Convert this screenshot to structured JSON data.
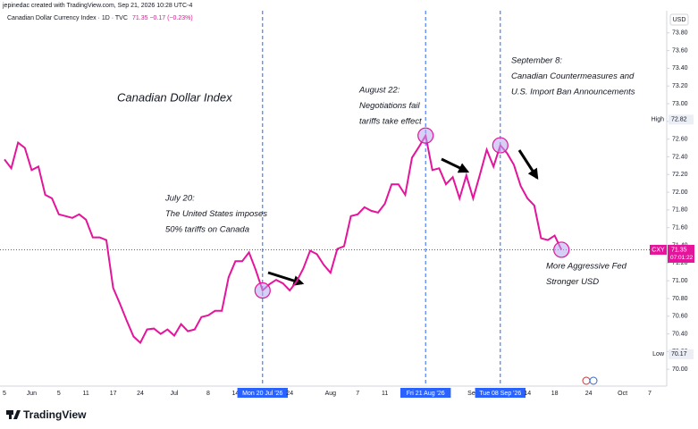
{
  "chart_data": {
    "type": "line",
    "header": "jepinedac created with TradingView.com, Sep 21, 2026 10:28 UTC-4",
    "legend_name": "Canadian Dollar Currency Index · 1D · TVC",
    "legend_quote": "71.35 −0.17 (−0.23%)",
    "title": "Canadian Dollar Index",
    "currency": "USD",
    "brand": "TradingView",
    "color": "#e4149b",
    "categories": [
      "5",
      null,
      null,
      null,
      "Jun",
      null,
      null,
      null,
      "5",
      null,
      null,
      null,
      "11",
      null,
      null,
      null,
      "17",
      null,
      null,
      null,
      "24",
      null,
      null,
      null,
      null,
      "Jul",
      null,
      null,
      null,
      null,
      "8",
      null,
      null,
      null,
      "14",
      null,
      null,
      null,
      "Mon 20 Jul '26",
      null,
      null,
      null,
      "24",
      null,
      null,
      null,
      null,
      null,
      "Aug",
      null,
      null,
      null,
      "7",
      null,
      null,
      null,
      "11",
      null,
      null,
      null,
      null,
      null,
      "Fri 21 Aug '26",
      null,
      null,
      null,
      null,
      null,
      null,
      "Sep",
      null,
      null,
      null,
      "Tue 08 Sep '26",
      null,
      null,
      null,
      "14",
      null,
      null,
      null,
      "18",
      null,
      null,
      null,
      null,
      "24",
      null,
      null,
      null,
      null,
      "Oct",
      null,
      null,
      null,
      "7",
      null,
      null
    ],
    "values": [
      72.37,
      72.27,
      72.56,
      72.5,
      72.25,
      72.29,
      71.97,
      71.93,
      71.75,
      71.73,
      71.71,
      71.75,
      71.69,
      71.49,
      71.49,
      71.46,
      70.92,
      70.74,
      70.55,
      70.37,
      70.3,
      70.45,
      70.46,
      70.4,
      70.45,
      70.38,
      70.51,
      70.43,
      70.45,
      70.59,
      70.61,
      70.66,
      70.66,
      71.04,
      71.22,
      71.22,
      71.32,
      71.12,
      70.89,
      70.96,
      71.01,
      70.97,
      70.89,
      70.99,
      71.14,
      71.34,
      71.3,
      71.18,
      71.09,
      71.36,
      71.39,
      71.73,
      71.75,
      71.83,
      71.79,
      71.77,
      71.87,
      72.09,
      72.09,
      71.97,
      72.39,
      72.51,
      72.64,
      72.25,
      72.27,
      72.09,
      72.17,
      71.93,
      72.19,
      71.93,
      72.2,
      72.48,
      72.29,
      72.53,
      72.44,
      72.31,
      72.07,
      71.93,
      71.85,
      71.48,
      71.46,
      71.51,
      71.35,
      null,
      null,
      null,
      null,
      null,
      null,
      null,
      null,
      null,
      null,
      null,
      null,
      null,
      null,
      null
    ],
    "event_markers": [
      38,
      62,
      73
    ],
    "ylim": [
      69.81,
      74.03
    ],
    "yticks": [
      {
        "value": 70.0,
        "label": "70.00"
      },
      {
        "value": 70.2,
        "label": "70.20"
      },
      {
        "value": 70.4,
        "label": "70.40"
      },
      {
        "value": 70.6,
        "label": "70.60"
      },
      {
        "value": 70.8,
        "label": "70.80"
      },
      {
        "value": 71.0,
        "label": "71.00"
      },
      {
        "value": 71.2,
        "label": "71.20"
      },
      {
        "value": 71.4,
        "label": "71.40"
      },
      {
        "value": 71.6,
        "label": "71.60"
      },
      {
        "value": 71.8,
        "label": "71.80"
      },
      {
        "value": 72.0,
        "label": "72.00"
      },
      {
        "value": 72.2,
        "label": "72.20"
      },
      {
        "value": 72.4,
        "label": "72.40"
      },
      {
        "value": 72.6,
        "label": "72.60"
      },
      {
        "value": 72.8,
        "label": "72.80"
      },
      {
        "value": 73.0,
        "label": "73.00"
      },
      {
        "value": 73.2,
        "label": "73.20"
      },
      {
        "value": 73.4,
        "label": "73.40"
      },
      {
        "value": 73.6,
        "label": "73.60"
      },
      {
        "value": 73.8,
        "label": "73.80"
      }
    ],
    "grid": false,
    "last_price": {
      "symbol": "CXY",
      "value": 71.35,
      "countdown": "07:01:22"
    },
    "high": {
      "label": "High",
      "value": 72.82
    },
    "low": {
      "label": "Low",
      "value": 70.17
    },
    "annotations": [
      {
        "lines": [
          "July 20:",
          "The United States imposes",
          "50% tariffs on Canada"
        ]
      },
      {
        "lines": [
          "August 22:",
          "Negotiations fail",
          "tariffs take effect"
        ]
      },
      {
        "lines": [
          "September 8:",
          "Canadian Countermeasures and",
          "U.S. Import Ban Announcements"
        ]
      },
      {
        "lines": [
          "More Aggressive Fed",
          "Stronger USD"
        ]
      }
    ]
  }
}
